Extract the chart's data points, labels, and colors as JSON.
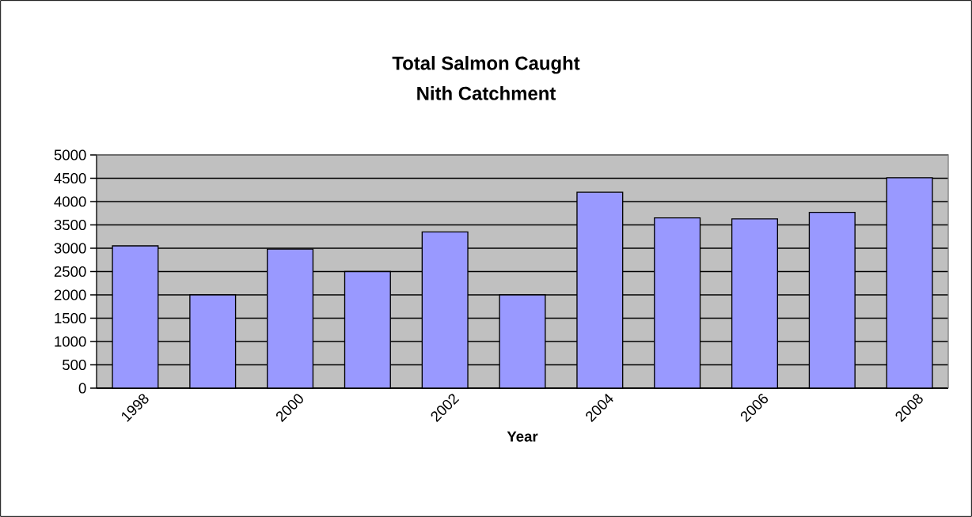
{
  "chart_data": {
    "type": "bar",
    "title": "Total Salmon Caught",
    "subtitle": "Nith Catchment",
    "xlabel": "Year",
    "categories": [
      "1998",
      null,
      "2000",
      null,
      "2002",
      null,
      "2004",
      null,
      "2006",
      null,
      "2008"
    ],
    "values": [
      3050,
      2000,
      2980,
      2500,
      3350,
      2000,
      4200,
      3650,
      3630,
      3770,
      4510
    ],
    "color": "#9999ff",
    "ylim": [
      0,
      5000
    ],
    "yticks": [
      0,
      500,
      1000,
      1500,
      2000,
      2500,
      3000,
      3500,
      4000,
      4500,
      5000
    ],
    "grid": "y"
  }
}
